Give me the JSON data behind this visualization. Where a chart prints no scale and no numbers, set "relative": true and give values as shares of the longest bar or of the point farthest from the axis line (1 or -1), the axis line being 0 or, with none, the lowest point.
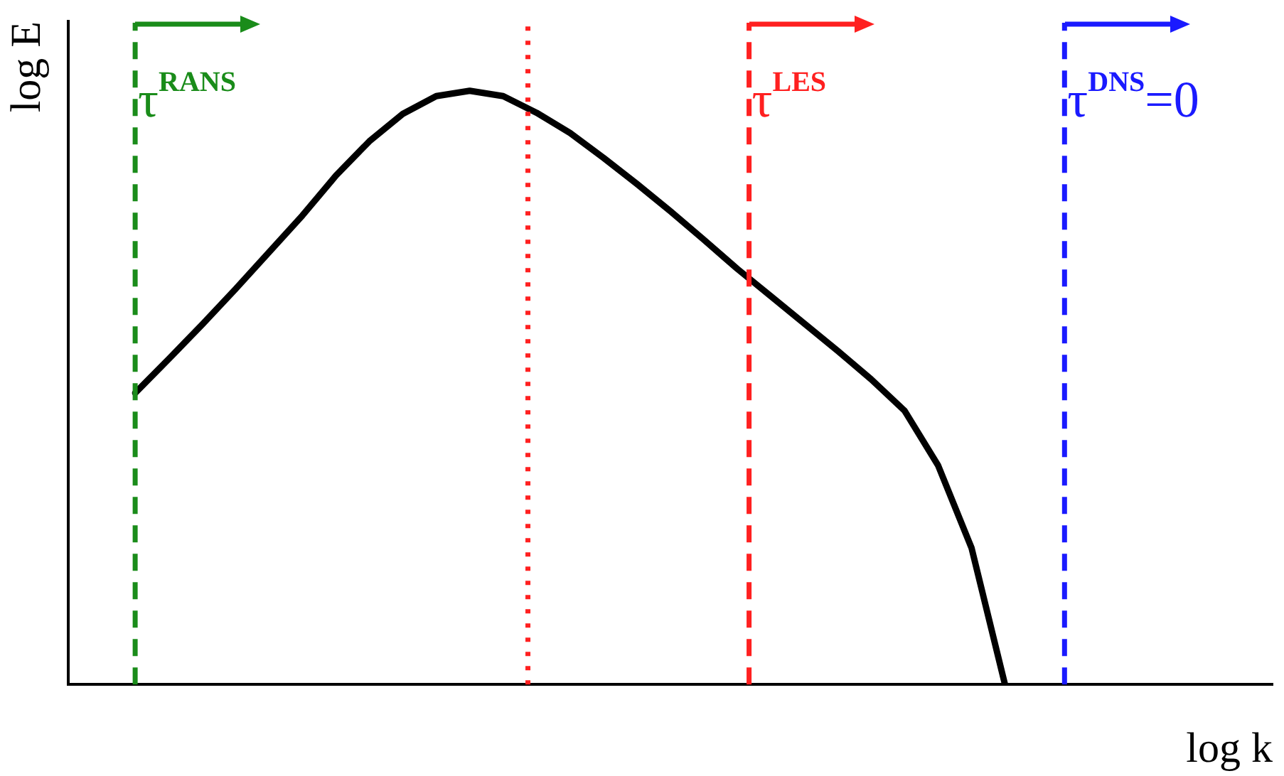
{
  "chart_data": {
    "type": "line",
    "relative": true,
    "xlabel": "log k",
    "ylabel": "log E",
    "categories": [
      null,
      null,
      null,
      null,
      null,
      null,
      null,
      null,
      null,
      null,
      null,
      null,
      null,
      null,
      null,
      null,
      null,
      null,
      null,
      null,
      null,
      null,
      null,
      null,
      null,
      null,
      null,
      null,
      null,
      null,
      null,
      null,
      null,
      null,
      null,
      null,
      null
    ],
    "series": [
      {
        "color": "#000000",
        "values": [
          null,
          null,
          0.491,
          0.548,
          0.606,
          0.666,
          0.728,
          0.79,
          0.857,
          0.915,
          0.961,
          0.991,
          1.0,
          0.991,
          0.963,
          0.929,
          0.887,
          0.843,
          0.797,
          0.749,
          0.7,
          0.654,
          0.608,
          0.562,
          0.514,
          0.461,
          0.369,
          0.23,
          0,
          null,
          null,
          null,
          null,
          null,
          null,
          null,
          null
        ]
      }
    ],
    "annotations": [
      "τ$^{RANS}$",
      "τ$^{LES}$",
      "τ$^{DNS}$=0"
    ]
  }
}
